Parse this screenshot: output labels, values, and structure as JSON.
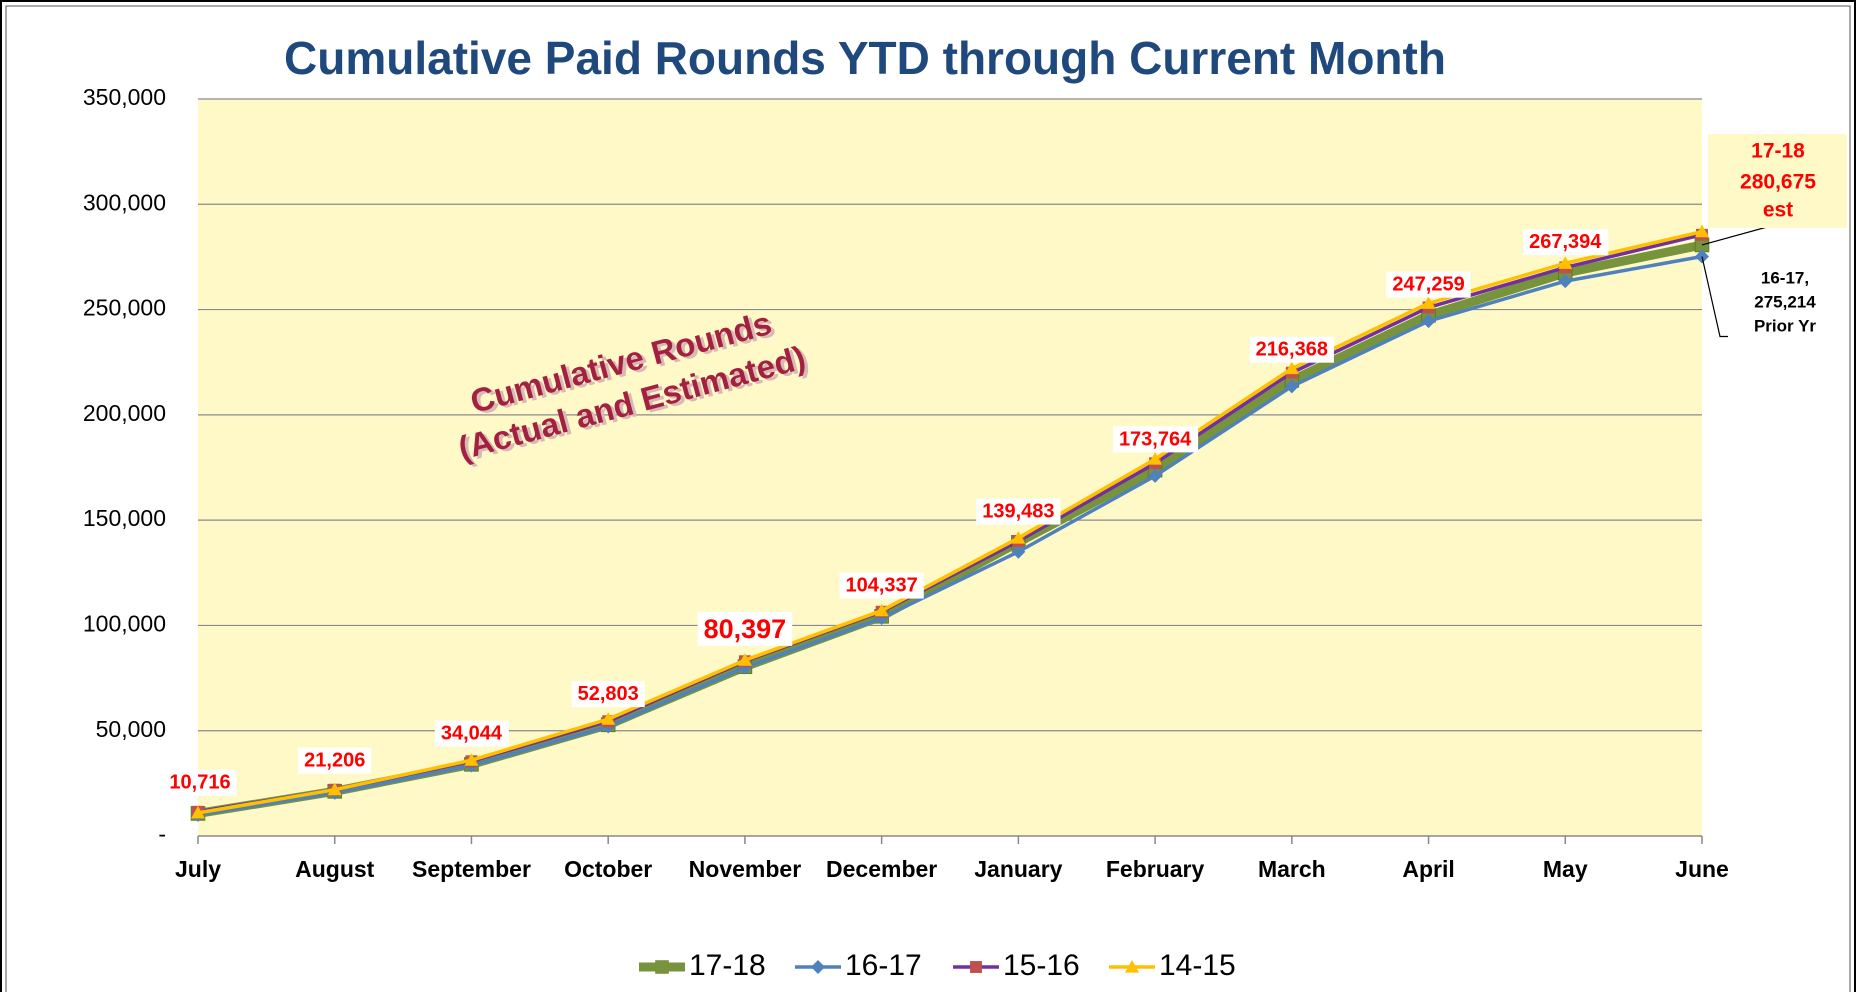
{
  "chart_data": {
    "type": "line",
    "title": "Cumulative Paid Rounds YTD through Current Month",
    "categories": [
      "July",
      "August",
      "September",
      "October",
      "November",
      "December",
      "January",
      "February",
      "March",
      "April",
      "May",
      "June"
    ],
    "series": [
      {
        "name": "17-18",
        "color": "#77933c",
        "marker_color": "#77933c",
        "marker": "square",
        "values": [
          10716,
          21206,
          34044,
          52803,
          80397,
          104337,
          139483,
          173764,
          216368,
          247259,
          267394,
          280675
        ],
        "value_labels": [
          "10,716",
          "21,206",
          "34,044",
          "52,803",
          "80,397",
          "104,337",
          "139,483",
          "173,764",
          "216,368",
          "247,259",
          "267,394",
          "280,675"
        ]
      },
      {
        "name": "16-17",
        "color": "#4f81bd",
        "marker_color": "#4f81bd",
        "marker": "diamond",
        "values": [
          10000,
          20500,
          33500,
          52000,
          80000,
          103500,
          135000,
          171000,
          213500,
          244500,
          263500,
          275214
        ]
      },
      {
        "name": "15-16",
        "color": "#7030a0",
        "marker_color": "#c0504d",
        "marker": "square",
        "values": [
          11500,
          22000,
          35500,
          54500,
          83000,
          106500,
          140000,
          177000,
          220000,
          251000,
          270000,
          285500
        ]
      },
      {
        "name": "14-15",
        "color": "#ffc000",
        "marker_color": "#ffc000",
        "marker": "triangle",
        "values": [
          11000,
          22000,
          36000,
          55500,
          83500,
          107000,
          141500,
          179000,
          222000,
          253000,
          272000,
          287000
        ]
      }
    ],
    "ylim": [
      0,
      350000
    ],
    "yticks": [
      {
        "value": 0,
        "label": "-"
      },
      {
        "value": 50000,
        "label": "50,000"
      },
      {
        "value": 100000,
        "label": "100,000"
      },
      {
        "value": 150000,
        "label": "150,000"
      },
      {
        "value": 200000,
        "label": "200,000"
      },
      {
        "value": 250000,
        "label": "250,000"
      },
      {
        "value": 300000,
        "label": "300,000"
      },
      {
        "value": 350000,
        "label": "350,000"
      }
    ],
    "grid": true,
    "legend": "bottom",
    "watermark": [
      "Cumulative Rounds",
      "(Actual and Estimated)"
    ],
    "current_note": "est",
    "prior_note": [
      "16-17,",
      "275,214",
      "Prior Yr"
    ]
  }
}
